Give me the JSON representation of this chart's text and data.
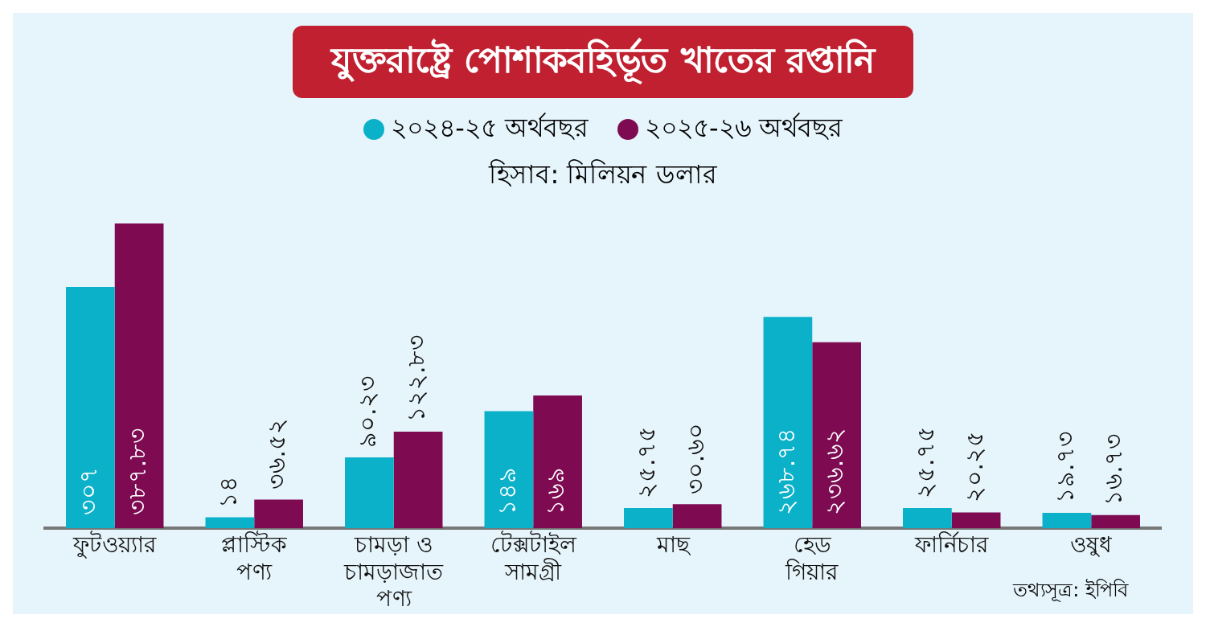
{
  "chart_data": {
    "type": "bar",
    "title": "যুক্তরাষ্ট্রে পোশাকবহির্ভূত খাতের রপ্তানি",
    "subtitle": "হিসাব: মিলিয়ন ডলার",
    "annotations": [
      "তথ্যসূত্র: ইপিবি"
    ],
    "legend": "top",
    "grid": false,
    "tick_labels": "x",
    "categories": [
      "ফুটওয়্যার",
      "প্লাস্টিক পণ্য",
      "চামড়া ও চামড়াজাত পণ্য",
      "টেক্সটাইল সামগ্রী",
      "মাছ",
      "হেড গিয়ার",
      "ফার্নিচার",
      "ওষুধ"
    ],
    "series": [
      {
        "name": "২০২৪-২৫ অর্থবছর",
        "color": "#0bb1c9",
        "values": [
          307,
          14,
          90.23,
          149,
          25.75,
          268.74,
          25.75,
          19.73
        ],
        "value_labels": [
          "৩০৭",
          "১৪",
          "৯০.২৩",
          "১৪৯",
          "২৫.৭৫",
          "২৬৮.৭৪",
          "২৫.৭৫",
          "১৯.৭৩"
        ]
      },
      {
        "name": "২০২৫-২৬ অর্থবছর",
        "color": "#7e0a52",
        "values": [
          387.83,
          36.52,
          122.83,
          169,
          30.6,
          236.62,
          20.25,
          16.73
        ],
        "value_labels": [
          "৩৮৭.৮৩",
          "৩৬.৫২",
          "১২২.৮৩",
          "১৬৯",
          "৩০.৬০",
          "২৩৬.৬২",
          "২০.২৫",
          "১৬.৭৩"
        ]
      }
    ]
  }
}
